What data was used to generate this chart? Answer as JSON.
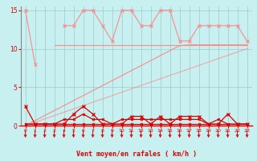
{
  "xlabel": "Vent moyen/en rafales ( km/h )",
  "x": [
    0,
    1,
    2,
    3,
    4,
    5,
    6,
    7,
    8,
    9,
    10,
    11,
    12,
    13,
    14,
    15,
    16,
    17,
    18,
    19,
    20,
    21,
    22,
    23
  ],
  "line_jagged": [
    15,
    8,
    null,
    null,
    13,
    13,
    15,
    15,
    13,
    11,
    15,
    15,
    13,
    13,
    15,
    15,
    11,
    11,
    13,
    13,
    13,
    13,
    13,
    11
  ],
  "line_horizontal": [
    null,
    null,
    null,
    10.5,
    10.5,
    10.5,
    10.5,
    10.5,
    10.5,
    10.5,
    10.5,
    10.5,
    10.5,
    10.5,
    10.5,
    10.5,
    10.5,
    10.5,
    10.5,
    10.5,
    10.5,
    10.5,
    10.5,
    10.5
  ],
  "line_trend_upper": [
    0,
    0.65,
    1.3,
    1.95,
    2.6,
    3.25,
    3.9,
    4.55,
    5.2,
    5.85,
    6.5,
    7.15,
    7.8,
    8.45,
    9.1,
    9.75,
    10.4,
    10.5,
    10.5,
    10.5,
    10.5,
    10.5,
    10.5,
    10.5
  ],
  "line_trend_lower": [
    0,
    0.43,
    0.87,
    1.3,
    1.74,
    2.17,
    2.6,
    3.04,
    3.47,
    3.9,
    4.35,
    4.78,
    5.22,
    5.65,
    6.09,
    6.52,
    6.96,
    7.39,
    7.83,
    8.26,
    8.7,
    9.13,
    9.57,
    10.0
  ],
  "line_dark_spiky": [
    2.5,
    0.2,
    0.2,
    0.2,
    0.2,
    1.5,
    2.5,
    1.5,
    0.2,
    0.2,
    0.2,
    1.2,
    1.2,
    0.2,
    1.2,
    0.2,
    1.2,
    1.2,
    1.2,
    0.2,
    0.2,
    1.5,
    0.2,
    0.2
  ],
  "line_dark_flat1": [
    0.2,
    0.2,
    0.2,
    0.2,
    0.2,
    0.2,
    0.2,
    0.2,
    0.2,
    0.2,
    0.2,
    0.2,
    0.2,
    0.2,
    0.2,
    0.2,
    0.2,
    0.2,
    0.2,
    0.2,
    0.2,
    0.2,
    0.2,
    0.2
  ],
  "line_dark_mid": [
    0.2,
    0.2,
    0.2,
    0.2,
    0.8,
    0.8,
    1.5,
    0.8,
    0.8,
    0.2,
    0.8,
    0.8,
    0.8,
    0.8,
    0.8,
    0.8,
    0.8,
    0.8,
    0.8,
    0.2,
    0.8,
    0.2,
    0.2,
    0.2
  ],
  "color_light": "#FF8888",
  "color_dark": "#DD0000",
  "bg_color": "#C8F0F0",
  "grid_color": "#99CCCC",
  "yticks": [
    0,
    5,
    10,
    15
  ],
  "xtick_labels": [
    "0",
    "1",
    "2",
    "3",
    "4",
    "5",
    "6",
    "7",
    "8",
    "9",
    "10",
    "11",
    "12",
    "13",
    "14",
    "15",
    "16",
    "17",
    "18",
    "19",
    "20",
    "21",
    "22",
    "23"
  ]
}
